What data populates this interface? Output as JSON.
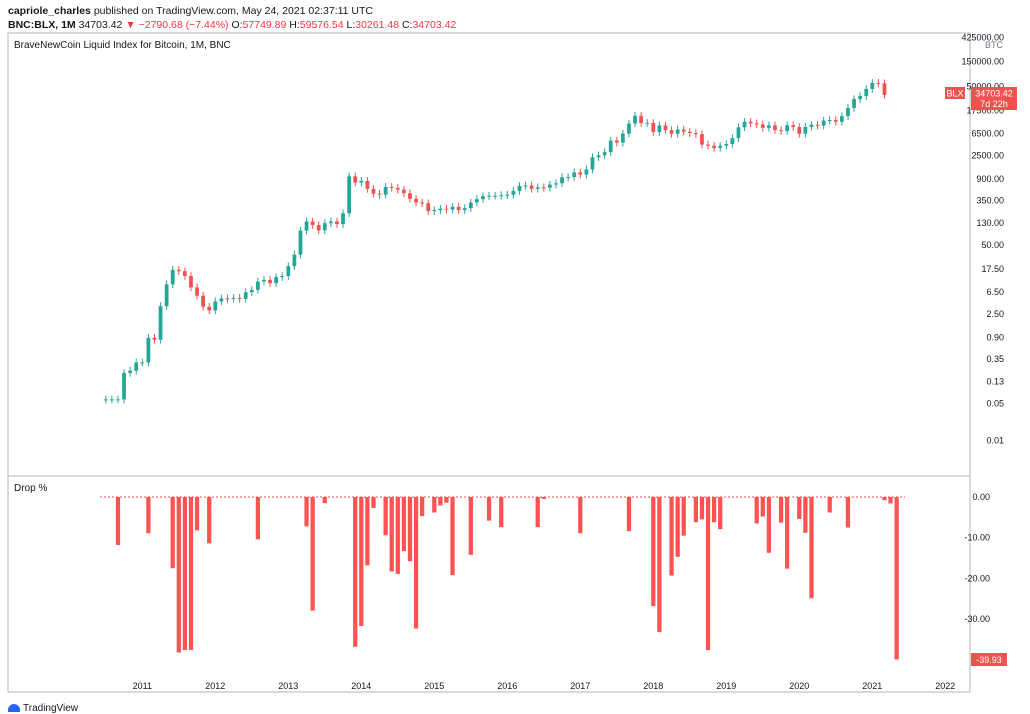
{
  "header": {
    "author": "capriole_charles",
    "published": "published on TradingView.com, May 24, 2021 02:37:11 UTC",
    "symbol": "BNC:BLX, 1M",
    "last": "34703.42",
    "change": "▼ −2790.68 (−7.44%)",
    "o_label": "O:",
    "o_value": "57749.89",
    "h_label": "H:",
    "h_value": "59576.54",
    "l_label": "L:",
    "l_value": "30261.48",
    "c_label": "C:",
    "c_value": "34703.42"
  },
  "footer": {
    "brand": "TradingView"
  },
  "colors": {
    "up": "#26a69a",
    "down": "#ef5350",
    "bar": "#ff5252",
    "grid_text": "#131722",
    "axis_line": "#b2b5be",
    "label_bg": "#ef5350"
  },
  "chart_data": [
    {
      "type": "candlestick",
      "title": "BraveNewCoin Liquid Index for Bitcoin, 1M, BNC",
      "y_scale": "log",
      "y_unit": "BTC",
      "y_tick_labels": [
        "425000.00",
        "150000.00",
        "50000.00",
        "17500.00",
        "6500.00",
        "2500.00",
        "900.00",
        "350.00",
        "130.00",
        "50.00",
        "17.50",
        "6.50",
        "2.50",
        "0.90",
        "0.35",
        "0.13",
        "0.05",
        "0.01"
      ],
      "y_ticks": [
        425000,
        150000,
        50000,
        17500,
        6500,
        2500,
        900,
        350,
        130,
        50,
        17.5,
        6.5,
        2.5,
        0.9,
        0.35,
        0.13,
        0.05,
        0.01
      ],
      "x_tick_labels": [
        "2011",
        "2012",
        "2013",
        "2014",
        "2015",
        "2016",
        "2017",
        "2018",
        "2019",
        "2020",
        "2021",
        "2022"
      ],
      "last_price_label": {
        "symbol": "BLX",
        "price": "34703.42",
        "countdown": "7d 22h"
      },
      "start": "2010-07",
      "close": [
        0.06,
        0.06,
        0.06,
        0.19,
        0.21,
        0.3,
        0.3,
        0.88,
        0.81,
        3.5,
        9,
        17,
        16,
        13,
        7.9,
        5.5,
        3.4,
        2.9,
        4.3,
        4.9,
        4.8,
        5,
        4.8,
        6.4,
        7.1,
        10.2,
        11,
        9.5,
        12.4,
        13,
        20,
        33,
        94,
        140,
        120,
        95,
        130,
        140,
        125,
        200,
        1000,
        760,
        820,
        580,
        470,
        450,
        630,
        610,
        560,
        480,
        375,
        320,
        310,
        220,
        230,
        245,
        235,
        265,
        230,
        250,
        320,
        370,
        420,
        430,
        430,
        440,
        450,
        530,
        660,
        670,
        580,
        620,
        610,
        700,
        740,
        960,
        970,
        1190,
        1080,
        1350,
        2300,
        2500,
        2870,
        4760,
        4350,
        6450,
        10000,
        14000,
        10200,
        10300,
        6900,
        9200,
        7500,
        6400,
        7700,
        7000,
        6600,
        6300,
        4000,
        3800,
        3450,
        3800,
        4100,
        5300,
        8500,
        10800,
        10100,
        9600,
        8300,
        9200,
        7500,
        7200,
        9300,
        8600,
        6400,
        8600,
        9450,
        9130,
        11350,
        11650,
        10800,
        13800,
        19700,
        29000,
        33100,
        45200,
        58800,
        57700,
        34700
      ],
      "dates": [
        "2010-07",
        "2011-01",
        "2012-01",
        "2013-01",
        "2014-01",
        "2015-01",
        "2016-01",
        "2017-01",
        "2018-01",
        "2019-01",
        "2020-01",
        "2021-01",
        "2021-05"
      ]
    },
    {
      "type": "bar",
      "title": "Drop %",
      "y_tick_labels": [
        "0.00",
        "-10.00",
        "-20.00",
        "-30.00"
      ],
      "y_ticks": [
        0,
        -10,
        -20,
        -30
      ],
      "ylim": [
        -40.5,
        2.5
      ],
      "last_value_label": "-39.93",
      "x_tick_labels": [
        "2011",
        "2012",
        "2013",
        "2014",
        "2015",
        "2016",
        "2017",
        "2018",
        "2019",
        "2020",
        "2021",
        "2022"
      ],
      "dates": [
        "2010-09",
        "2011-02",
        "2011-06",
        "2011-07",
        "2011-08",
        "2011-09",
        "2011-10",
        "2011-12",
        "2012-08",
        "2013-04",
        "2013-05",
        "2013-07",
        "2013-12",
        "2014-01",
        "2014-02",
        "2014-03",
        "2014-05",
        "2014-06",
        "2014-07",
        "2014-08",
        "2014-09",
        "2014-10",
        "2014-11",
        "2015-01",
        "2015-02",
        "2015-03",
        "2015-04",
        "2015-07",
        "2015-10",
        "2015-12",
        "2016-06",
        "2016-07",
        "2017-01",
        "2017-09",
        "2018-01",
        "2018-02",
        "2018-04",
        "2018-05",
        "2018-06",
        "2018-08",
        "2018-09",
        "2018-10",
        "2018-11",
        "2018-12",
        "2019-06",
        "2019-07",
        "2019-08",
        "2019-10",
        "2019-11",
        "2020-01",
        "2020-02",
        "2020-03",
        "2020-06",
        "2020-09",
        "2021-03",
        "2021-04",
        "2021-05"
      ],
      "values": [
        -11.8,
        -8.9,
        -17.5,
        -38.2,
        -37.6,
        -37.6,
        -8.2,
        -11.4,
        -10.4,
        -7.2,
        -27.9,
        -1.5,
        -36.8,
        -31.7,
        -16.8,
        -2.7,
        -9.4,
        -18.3,
        -18.9,
        -13.3,
        -15.8,
        -32.3,
        -4.7,
        -3.8,
        -2.1,
        -1.4,
        -19.2,
        -14.2,
        -5.8,
        -7.4,
        -7.4,
        -0.5,
        -8.9,
        -8.4,
        -26.8,
        -33.2,
        -19.3,
        -14.7,
        -9.5,
        -6.2,
        -5.5,
        -37.6,
        -6.2,
        -7.9,
        -6.5,
        -4.8,
        -13.7,
        -6.3,
        -17.6,
        -5.4,
        -8.8,
        -24.9,
        -3.8,
        -7.5,
        -0.8,
        -1.6,
        -39.93
      ]
    }
  ]
}
